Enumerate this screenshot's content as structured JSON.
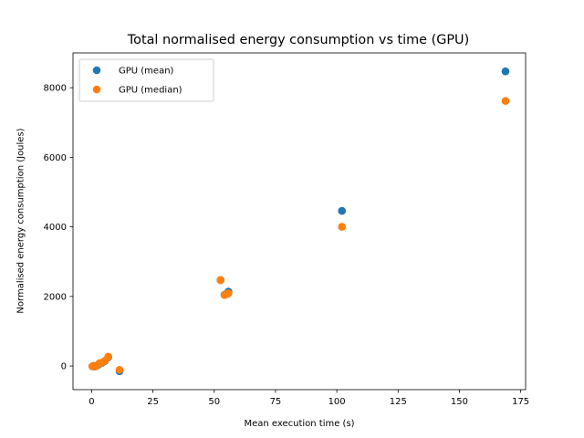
{
  "chart_data": {
    "type": "scatter",
    "title": "Total normalised energy consumption vs time (GPU)",
    "xlabel": "Mean execution time (s)",
    "ylabel": "Normalised energy consumption (Joules)",
    "xlim": [
      -7.6,
      177.0
    ],
    "ylim": [
      -680,
      9000
    ],
    "xticks": [
      0,
      25,
      50,
      75,
      100,
      125,
      150,
      175
    ],
    "yticks": [
      0,
      2000,
      4000,
      6000,
      8000
    ],
    "grid": false,
    "legend_position": "upper-left",
    "series": [
      {
        "name": "GPU (mean)",
        "color": "#1f77b4",
        "points": [
          {
            "x": 0.3,
            "y": -10
          },
          {
            "x": 0.8,
            "y": 5
          },
          {
            "x": 1.3,
            "y": -20
          },
          {
            "x": 2.2,
            "y": 10
          },
          {
            "x": 3.2,
            "y": 60
          },
          {
            "x": 4.2,
            "y": 90
          },
          {
            "x": 5.4,
            "y": 140
          },
          {
            "x": 6.8,
            "y": 250
          },
          {
            "x": 11.4,
            "y": -150
          },
          {
            "x": 52.6,
            "y": 2470
          },
          {
            "x": 54.2,
            "y": 2050
          },
          {
            "x": 55.3,
            "y": 2080
          },
          {
            "x": 55.8,
            "y": 2140
          },
          {
            "x": 102.1,
            "y": 4460
          },
          {
            "x": 168.8,
            "y": 8470
          }
        ]
      },
      {
        "name": "GPU (median)",
        "color": "#ff7f0e",
        "points": [
          {
            "x": 0.3,
            "y": -10
          },
          {
            "x": 0.8,
            "y": 0
          },
          {
            "x": 1.3,
            "y": -20
          },
          {
            "x": 2.2,
            "y": 20
          },
          {
            "x": 3.2,
            "y": 80
          },
          {
            "x": 4.2,
            "y": 100
          },
          {
            "x": 5.4,
            "y": 150
          },
          {
            "x": 6.8,
            "y": 270
          },
          {
            "x": 11.4,
            "y": -110
          },
          {
            "x": 52.6,
            "y": 2470
          },
          {
            "x": 54.2,
            "y": 2040
          },
          {
            "x": 55.3,
            "y": 2070
          },
          {
            "x": 55.8,
            "y": 2090
          },
          {
            "x": 102.1,
            "y": 4000
          },
          {
            "x": 168.8,
            "y": 7620
          }
        ]
      }
    ]
  }
}
